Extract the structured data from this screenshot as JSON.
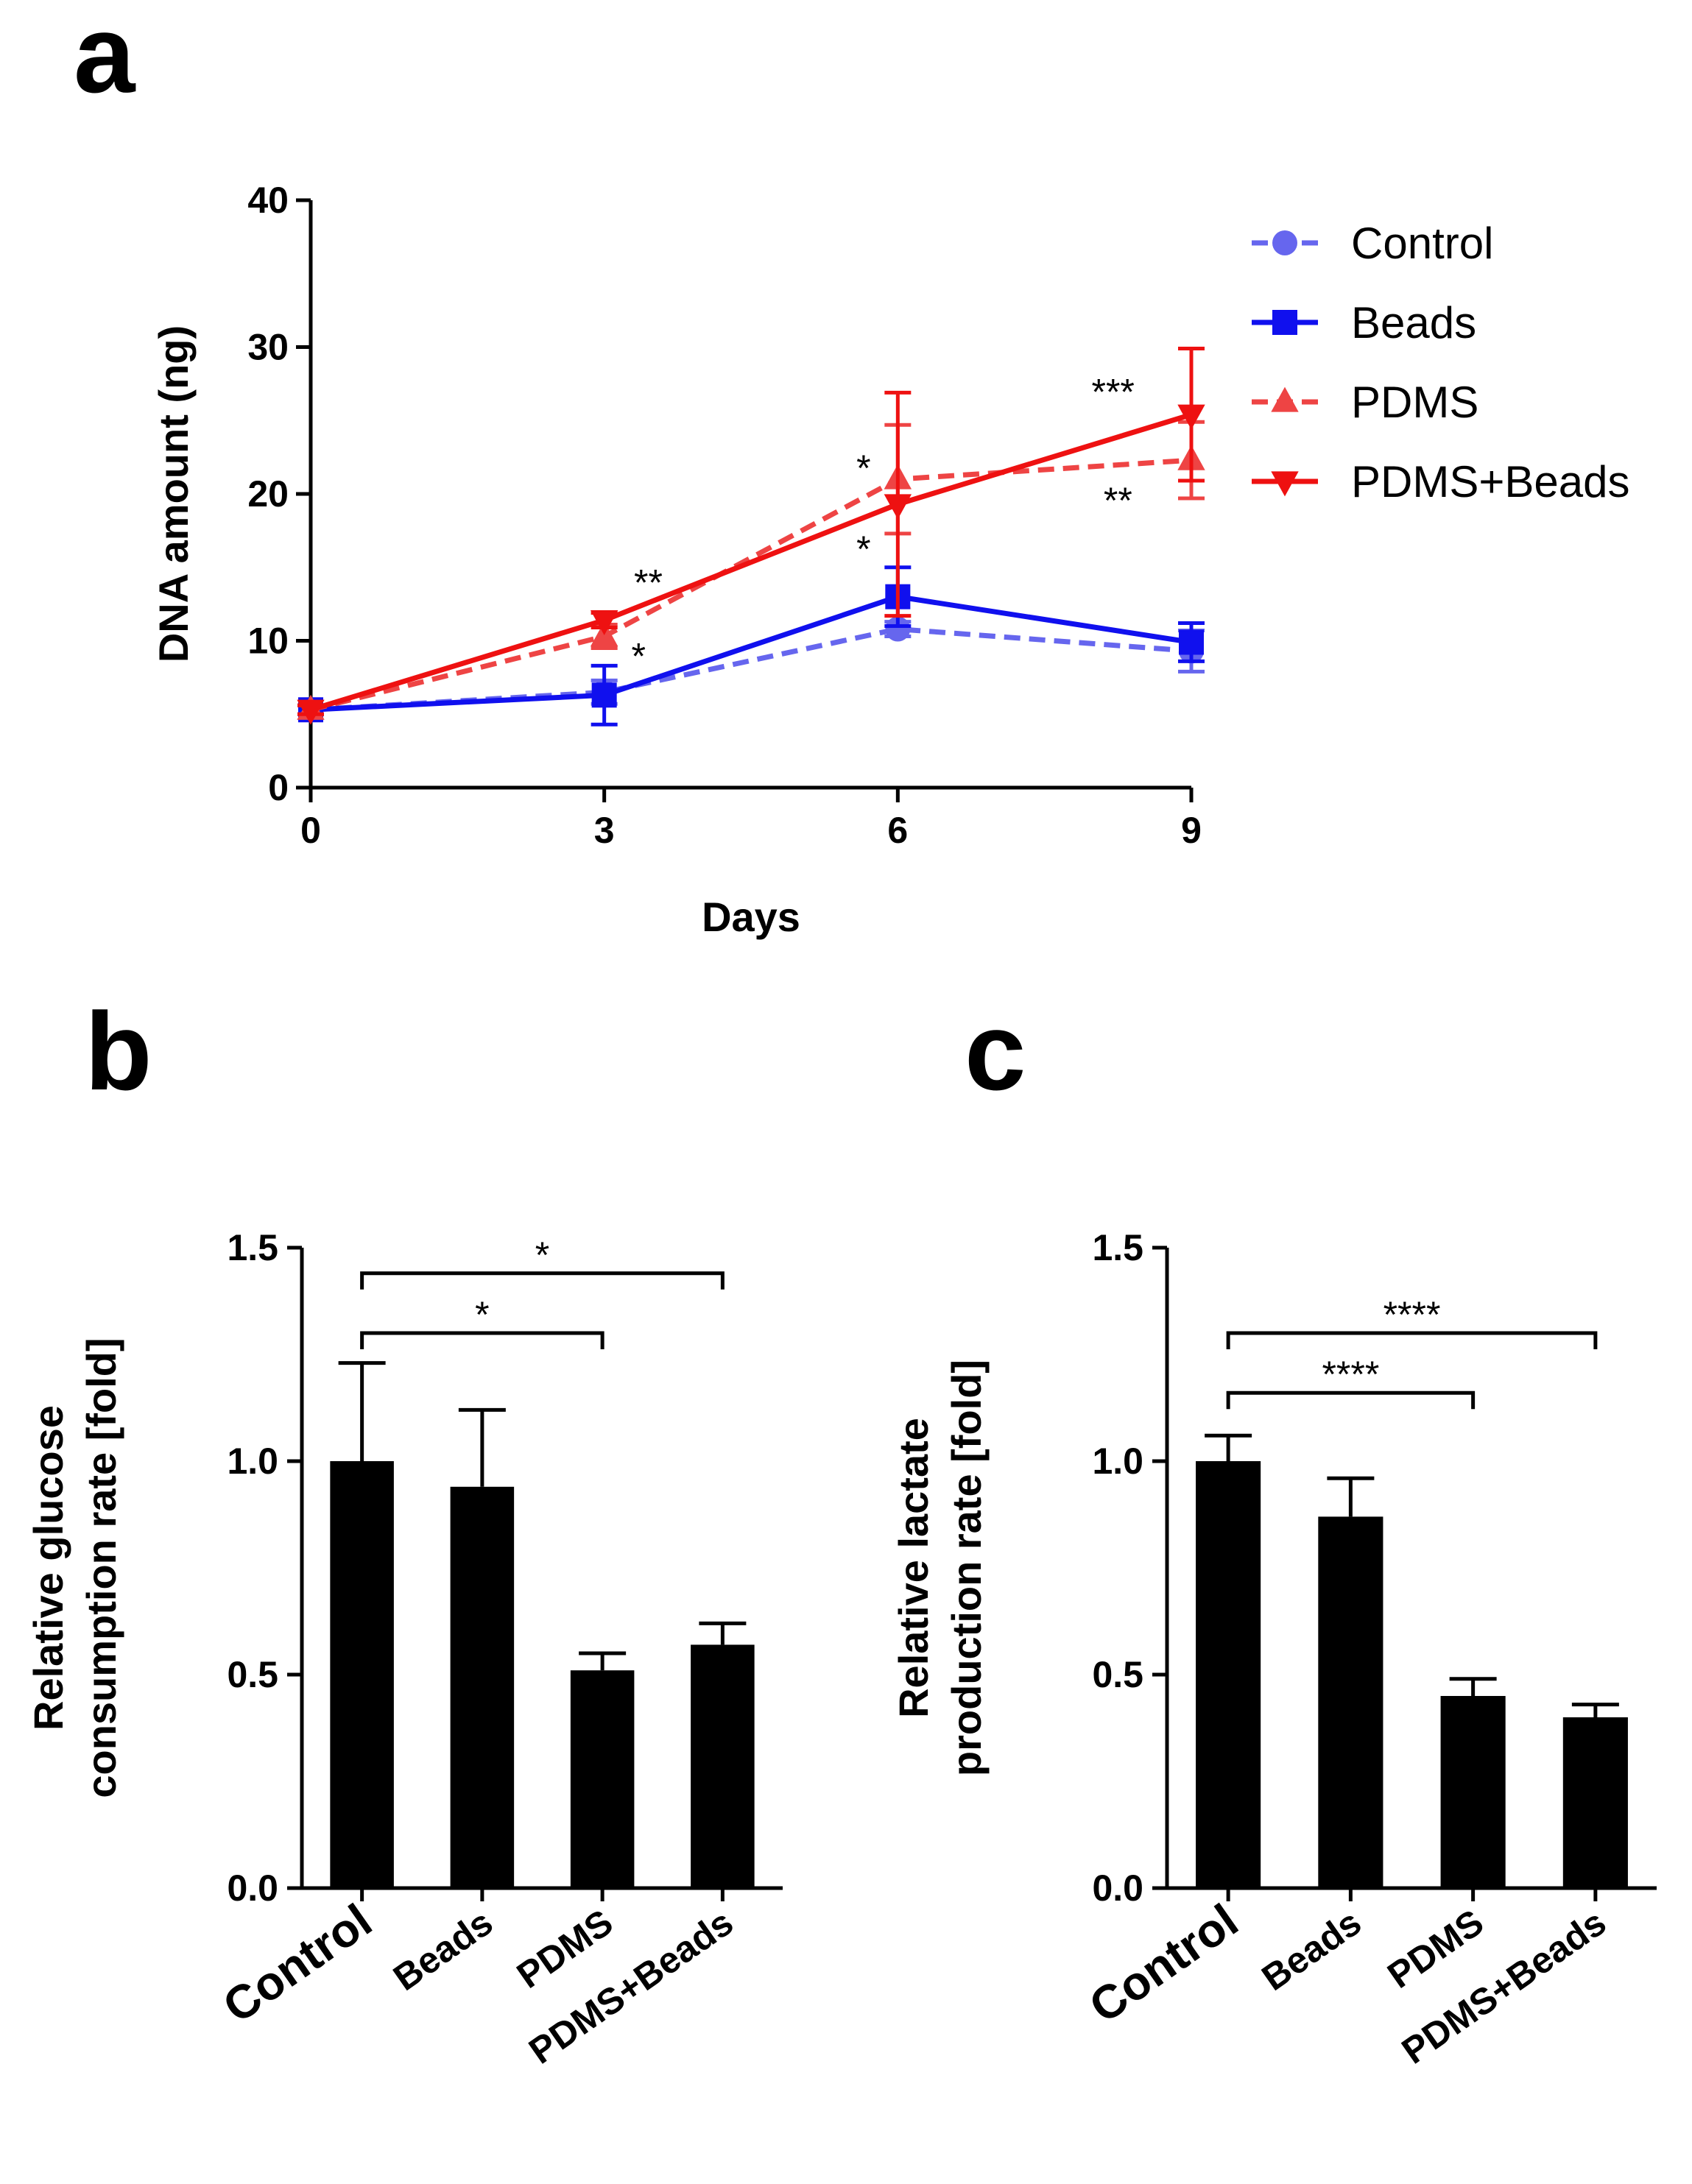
{
  "panels": {
    "a": "a",
    "b": "b",
    "c": "c"
  },
  "chart_data": [
    {
      "type": "line",
      "panel": "a",
      "xlabel": "Days",
      "ylabel": "DNA amount (ng)",
      "x": [
        0,
        3,
        6,
        9
      ],
      "xticks": [
        "0",
        "3",
        "6",
        "9"
      ],
      "ylim": [
        0,
        40
      ],
      "yticks": [
        "0",
        "10",
        "20",
        "30",
        "40"
      ],
      "legend_position": "right",
      "series": [
        {
          "name": "Control",
          "values": [
            5.3,
            6.5,
            10.8,
            9.3
          ],
          "err": [
            0.3,
            0.8,
            0.5,
            1.4
          ],
          "color": "#6666ee",
          "dash": true,
          "marker": "circle"
        },
        {
          "name": "Beads",
          "values": [
            5.3,
            6.3,
            13.0,
            9.9
          ],
          "err": [
            0.3,
            2.0,
            2.0,
            1.3
          ],
          "color": "#1010ee",
          "dash": false,
          "marker": "square"
        },
        {
          "name": "PDMS",
          "values": [
            5.3,
            10.3,
            21.0,
            22.3
          ],
          "err": [
            0.3,
            0.8,
            3.7,
            2.6
          ],
          "color": "#ee4444",
          "dash": true,
          "marker": "triangle-up"
        },
        {
          "name": "PDMS+Beads",
          "values": [
            5.3,
            11.4,
            19.3,
            25.4
          ],
          "err": [
            0.3,
            0.5,
            7.6,
            4.5
          ],
          "color": "#ee1111",
          "dash": false,
          "marker": "triangle-down"
        }
      ],
      "annotations": [
        {
          "text": "**",
          "x": 3.45,
          "y": 14.0
        },
        {
          "text": "*",
          "x": 3.35,
          "y": 9.0
        },
        {
          "text": "*",
          "x": 5.65,
          "y": 21.8
        },
        {
          "text": "*",
          "x": 5.65,
          "y": 16.3
        },
        {
          "text": "***",
          "x": 8.2,
          "y": 27.0
        },
        {
          "text": "**",
          "x": 8.25,
          "y": 19.6
        }
      ]
    },
    {
      "type": "bar",
      "panel": "b",
      "ylabel_lines": [
        "Relative glucose",
        "consumption rate [fold]"
      ],
      "categories": [
        "Control",
        "Beads",
        "PDMS",
        "PDMS+Beads"
      ],
      "values": [
        1.0,
        0.94,
        0.51,
        0.57
      ],
      "err": [
        0.23,
        0.18,
        0.04,
        0.05
      ],
      "ylim": [
        0,
        1.5
      ],
      "yticks": [
        "0.0",
        "0.5",
        "1.0",
        "1.5"
      ],
      "color": "#000000",
      "significance": [
        {
          "from": 0,
          "to": 2,
          "label": "*",
          "y": 1.3
        },
        {
          "from": 0,
          "to": 3,
          "label": "*",
          "y": 1.44
        }
      ]
    },
    {
      "type": "bar",
      "panel": "c",
      "ylabel_lines": [
        "Relative lactate",
        "production rate [fold]"
      ],
      "categories": [
        "Control",
        "Beads",
        "PDMS",
        "PDMS+Beads"
      ],
      "values": [
        1.0,
        0.87,
        0.45,
        0.4
      ],
      "err": [
        0.06,
        0.09,
        0.04,
        0.03
      ],
      "ylim": [
        0,
        1.5
      ],
      "yticks": [
        "0.0",
        "0.5",
        "1.0",
        "1.5"
      ],
      "color": "#000000",
      "significance": [
        {
          "from": 0,
          "to": 2,
          "label": "****",
          "y": 1.16
        },
        {
          "from": 0,
          "to": 3,
          "label": "****",
          "y": 1.3
        }
      ]
    }
  ]
}
